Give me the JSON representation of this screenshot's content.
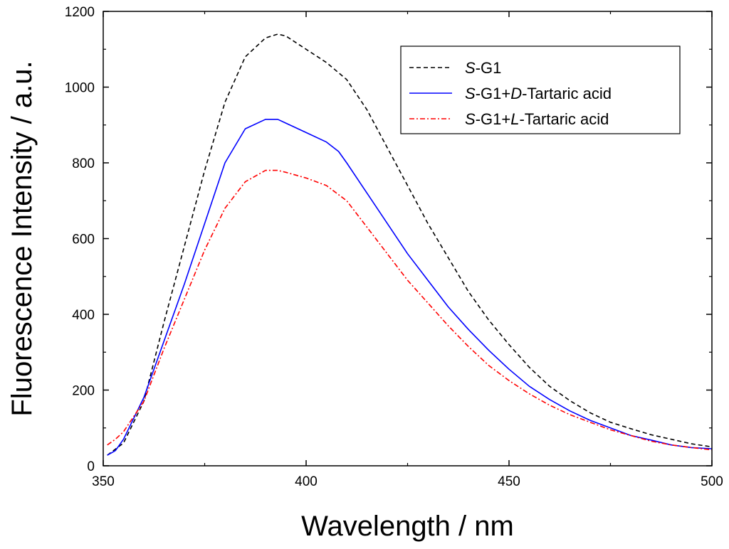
{
  "chart_data": {
    "type": "line",
    "title": "",
    "xlabel": "Wavelength / nm",
    "ylabel": "Fluorescence Intensity / a.u.",
    "xlim": [
      350,
      500
    ],
    "ylim": [
      0,
      1200
    ],
    "xticks": [
      350,
      400,
      450,
      500
    ],
    "yticks": [
      0,
      200,
      400,
      600,
      800,
      1000,
      1200
    ],
    "grid": false,
    "legend_position": "top-right",
    "series": [
      {
        "name": "S-G1",
        "name_parts": [
          {
            "text": "S",
            "italic": true
          },
          {
            "text": "-G1",
            "italic": false
          }
        ],
        "color": "#000000",
        "dash": "dashed",
        "x": [
          351,
          355,
          360,
          365,
          370,
          375,
          380,
          385,
          390,
          393,
          395,
          400,
          405,
          410,
          415,
          420,
          425,
          430,
          435,
          440,
          445,
          450,
          455,
          460,
          465,
          470,
          475,
          480,
          485,
          490,
          495,
          500
        ],
        "y": [
          28,
          60,
          170,
          380,
          580,
          780,
          960,
          1080,
          1130,
          1140,
          1135,
          1100,
          1065,
          1020,
          940,
          840,
          740,
          640,
          550,
          460,
          385,
          320,
          260,
          210,
          172,
          140,
          115,
          98,
          82,
          70,
          58,
          50
        ]
      },
      {
        "name": "S-G1+D-Tartaric acid",
        "name_parts": [
          {
            "text": "S",
            "italic": true
          },
          {
            "text": "-G1+",
            "italic": false
          },
          {
            "text": "D",
            "italic": true
          },
          {
            "text": "-Tartaric acid",
            "italic": false
          }
        ],
        "color": "#0000ff",
        "dash": "solid",
        "x": [
          351,
          353,
          355,
          360,
          365,
          370,
          375,
          380,
          385,
          390,
          393,
          395,
          400,
          405,
          408,
          410,
          415,
          420,
          425,
          430,
          435,
          440,
          445,
          450,
          455,
          460,
          465,
          470,
          475,
          480,
          485,
          490,
          495,
          500
        ],
        "y": [
          28,
          40,
          70,
          180,
          330,
          480,
          640,
          800,
          890,
          915,
          915,
          905,
          880,
          855,
          830,
          800,
          720,
          640,
          560,
          490,
          420,
          360,
          305,
          255,
          210,
          175,
          145,
          120,
          100,
          80,
          68,
          55,
          48,
          45
        ]
      },
      {
        "name": "S-G1+L-Tartaric acid",
        "name_parts": [
          {
            "text": "S",
            "italic": true
          },
          {
            "text": "-G1+",
            "italic": false
          },
          {
            "text": "L",
            "italic": true
          },
          {
            "text": "-Tartaric acid",
            "italic": false
          }
        ],
        "color": "#ff0000",
        "dash": "dashdot",
        "x": [
          351,
          353,
          355,
          360,
          365,
          370,
          375,
          380,
          385,
          390,
          393,
          395,
          400,
          405,
          410,
          415,
          420,
          425,
          430,
          435,
          440,
          445,
          450,
          455,
          460,
          465,
          470,
          475,
          480,
          485,
          490,
          495,
          500
        ],
        "y": [
          55,
          70,
          90,
          170,
          310,
          440,
          570,
          680,
          750,
          780,
          780,
          775,
          760,
          740,
          700,
          630,
          560,
          490,
          430,
          370,
          315,
          265,
          225,
          190,
          160,
          135,
          115,
          95,
          80,
          65,
          55,
          48,
          42
        ]
      }
    ]
  }
}
